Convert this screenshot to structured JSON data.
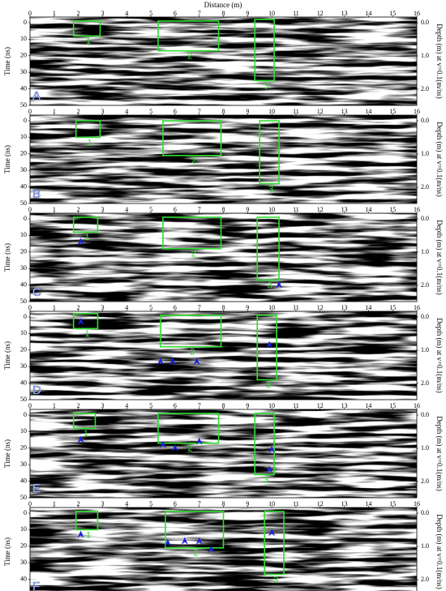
{
  "x_axis_title": "Distance (m)",
  "y_axis_title": "Time (ns)",
  "y2_axis_title": "Depth (m) at v=0.1(m/ns)",
  "xticks": [
    0,
    1,
    2,
    3,
    4,
    5,
    6,
    7,
    8,
    9,
    10,
    11,
    12,
    13,
    14,
    15,
    16
  ],
  "yticks": [
    0,
    10,
    20,
    30,
    40,
    50
  ],
  "y2ticks": [
    "0.0",
    "1.0",
    "2.0"
  ],
  "panels": [
    {
      "label": "A",
      "boxes": [
        "1",
        "2",
        "3"
      ]
    },
    {
      "label": "B",
      "boxes": [
        "1",
        "2",
        "3"
      ]
    },
    {
      "label": "C",
      "boxes": [
        "1",
        "2",
        "3"
      ]
    },
    {
      "label": "D",
      "boxes": [
        "1",
        "2",
        "3"
      ]
    },
    {
      "label": "E",
      "boxes": [
        "1",
        "2",
        "3"
      ]
    },
    {
      "label": "F",
      "boxes": [
        "1",
        "2",
        "3"
      ]
    }
  ]
}
